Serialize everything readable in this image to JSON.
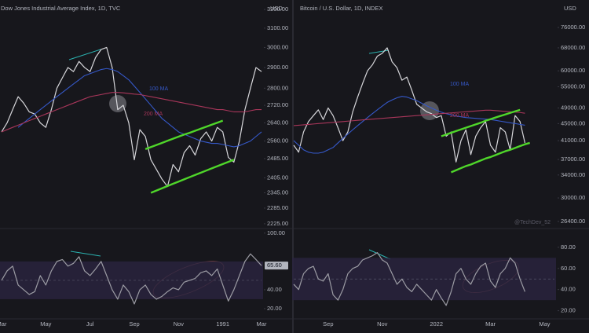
{
  "chart_data": [
    {
      "type": "line",
      "title": "Dow Jones Industrial Average Index, 1D, TVC",
      "unit": "USD",
      "log": true,
      "ylim": [
        2210,
        3230
      ],
      "yticks": [
        {
          "value": 3200,
          "label": "3200.00"
        },
        {
          "value": 3100,
          "label": "3100.00"
        },
        {
          "value": 3000,
          "label": "3000.00"
        },
        {
          "value": 2900,
          "label": "2900.00"
        },
        {
          "value": 2800,
          "label": "2800.00"
        },
        {
          "value": 2720,
          "label": "2720.00"
        },
        {
          "value": 2640,
          "label": "2640.00"
        },
        {
          "value": 2560,
          "label": "2560.00"
        },
        {
          "value": 2485,
          "label": "2485.00"
        },
        {
          "value": 2405,
          "label": "2405.00"
        },
        {
          "value": 2345,
          "label": "2345.00"
        },
        {
          "value": 2285,
          "label": "2285.00"
        },
        {
          "value": 2225,
          "label": "2225.00"
        }
      ],
      "series": [
        {
          "color": "#d6d6da",
          "values": [
            2600,
            2640,
            2700,
            2760,
            2730,
            2690,
            2680,
            2640,
            2620,
            2700,
            2800,
            2850,
            2900,
            2880,
            2930,
            2900,
            2880,
            2950,
            2990,
            3000,
            2900,
            2700,
            2720,
            2640,
            2480,
            2610,
            2580,
            2480,
            2440,
            2400,
            2370,
            2460,
            2430,
            2510,
            2540,
            2500,
            2570,
            2600,
            2560,
            2620,
            2600,
            2490,
            2470,
            2560,
            2700,
            2800,
            2900,
            2880
          ]
        },
        {
          "name": "100 MA",
          "color": "#3558c8",
          "values": [
            null,
            null,
            null,
            2620,
            2640,
            2660,
            2680,
            2700,
            2720,
            2740,
            2760,
            2780,
            2800,
            2820,
            2840,
            2860,
            2870,
            2880,
            2890,
            2895,
            2890,
            2880,
            2860,
            2840,
            2810,
            2780,
            2750,
            2720,
            2690,
            2660,
            2640,
            2620,
            2600,
            2590,
            2580,
            2570,
            2560,
            2555,
            2550,
            2550,
            2545,
            2540,
            2535,
            2540,
            2550,
            2560,
            2580,
            2600
          ]
        },
        {
          "name": "200 MA",
          "color": "#a8365a",
          "values": [
            2600,
            2610,
            2620,
            2630,
            2640,
            2650,
            2660,
            2670,
            2680,
            2690,
            2700,
            2710,
            2720,
            2730,
            2740,
            2750,
            2760,
            2765,
            2770,
            2775,
            2780,
            2780,
            2778,
            2775,
            2772,
            2770,
            2765,
            2760,
            2755,
            2750,
            2745,
            2740,
            2735,
            2730,
            2725,
            2720,
            2715,
            2710,
            2705,
            2700,
            2700,
            2695,
            2690,
            2690,
            2690,
            2695,
            2700,
            2700
          ]
        },
        {
          "color": "#4fd62a",
          "values": [
            null,
            null,
            null,
            null,
            null,
            null,
            null,
            null,
            null,
            null,
            null,
            null,
            null,
            null,
            null,
            null,
            null,
            null,
            null,
            null,
            null,
            null,
            null,
            null,
            null,
            null,
            2525,
            2534,
            2543,
            2552,
            2561,
            2570,
            2579,
            2588,
            2596,
            2605,
            2614,
            2623,
            2632,
            2641,
            2650,
            null,
            null,
            null,
            null,
            null,
            null,
            null
          ]
        },
        {
          "color": "#4fd62a",
          "values": [
            null,
            null,
            null,
            null,
            null,
            null,
            null,
            null,
            null,
            null,
            null,
            null,
            null,
            null,
            null,
            null,
            null,
            null,
            null,
            null,
            null,
            null,
            null,
            null,
            null,
            null,
            null,
            2345,
            2354,
            2363,
            2372,
            2381,
            2390,
            2399,
            2408,
            2417,
            2426,
            2435,
            2444,
            2453,
            2462,
            2471,
            2480,
            null,
            null,
            null,
            null,
            null
          ]
        }
      ]
    },
    {
      "type": "line",
      "ylim": [
        10,
        104
      ],
      "band": [
        30,
        70
      ],
      "midline": 50,
      "yticks": [
        {
          "value": 100,
          "label": "100.00"
        },
        {
          "value": 40,
          "label": "40.00"
        },
        {
          "value": 20,
          "label": "20.00"
        }
      ],
      "last_value_label": "65.60",
      "categories": [
        "Mar",
        null,
        null,
        null,
        null,
        null,
        null,
        null,
        "May",
        null,
        null,
        null,
        null,
        null,
        null,
        null,
        "Jul",
        null,
        null,
        null,
        null,
        null,
        null,
        null,
        "Sep",
        null,
        null,
        null,
        null,
        null,
        null,
        null,
        "Nov",
        null,
        null,
        null,
        null,
        null,
        null,
        null,
        "1991",
        null,
        null,
        null,
        null,
        null,
        null,
        "Mar"
      ],
      "series": [
        {
          "color": "#9c9ca4",
          "values": [
            50,
            60,
            65,
            45,
            40,
            35,
            38,
            55,
            45,
            60,
            70,
            72,
            65,
            68,
            75,
            60,
            55,
            62,
            70,
            55,
            40,
            30,
            45,
            38,
            25,
            40,
            45,
            35,
            30,
            33,
            38,
            42,
            40,
            48,
            50,
            52,
            58,
            60,
            55,
            62,
            45,
            28,
            40,
            55,
            70,
            78,
            72,
            65.6
          ]
        }
      ]
    },
    {
      "type": "line",
      "title": "Bitcoin / U.S. Dollar, 1D, INDEX",
      "unit": "USD",
      "log": true,
      "watermark": "@TechDev_52",
      "ylim": [
        25500,
        86400
      ],
      "yticks": [
        {
          "value": 76000,
          "label": "76000.00"
        },
        {
          "value": 68000,
          "label": "68000.00"
        },
        {
          "value": 60000,
          "label": "60000.00"
        },
        {
          "value": 55000,
          "label": "55000.00"
        },
        {
          "value": 49000,
          "label": "49000.00"
        },
        {
          "value": 45000,
          "label": "45000.00"
        },
        {
          "value": 41000,
          "label": "41000.00"
        },
        {
          "value": 37000,
          "label": "37000.00"
        },
        {
          "value": 34000,
          "label": "34000.00"
        },
        {
          "value": 30000,
          "label": "30000.00"
        },
        {
          "value": 26400,
          "label": "26400.00"
        }
      ],
      "series": [
        {
          "color": "#d6d6da",
          "values": [
            40000,
            38500,
            43000,
            45500,
            47000,
            48500,
            46000,
            49000,
            47000,
            44000,
            41000,
            43000,
            48000,
            52000,
            56000,
            60000,
            62000,
            65000,
            66000,
            68000,
            63000,
            61000,
            57000,
            58000,
            54000,
            50000,
            49000,
            48000,
            47500,
            46500,
            47000,
            42000,
            43000,
            36500,
            41000,
            43500,
            38000,
            42000,
            44000,
            45500,
            40000,
            38500,
            44000,
            43000,
            39000,
            47000,
            45500,
            40500,
            null,
            null,
            null,
            null,
            null,
            null
          ]
        },
        {
          "name": "100 MA",
          "color": "#3558c8",
          "values": [
            41000,
            40000,
            39000,
            38500,
            38300,
            38300,
            38500,
            39000,
            39500,
            40500,
            41500,
            42500,
            43500,
            44500,
            45500,
            46500,
            47500,
            48500,
            49500,
            50500,
            51200,
            51800,
            52200,
            52000,
            51500,
            51000,
            50300,
            49600,
            49000,
            48400,
            47900,
            47500,
            47200,
            46900,
            46700,
            46500,
            46400,
            46300,
            46200,
            46100,
            46000,
            45800,
            45600,
            45400,
            45200,
            45000,
            44800,
            44600,
            null,
            null,
            null,
            null,
            null,
            null
          ]
        },
        {
          "name": "200 MA",
          "color": "#a8365a",
          "values": [
            44500,
            44600,
            44700,
            44800,
            44900,
            45000,
            45100,
            45200,
            45300,
            45400,
            45500,
            45600,
            45700,
            45800,
            45900,
            46000,
            46100,
            46200,
            46300,
            46400,
            46500,
            46600,
            46700,
            46800,
            46900,
            47000,
            47100,
            47200,
            47300,
            47400,
            47500,
            47600,
            47700,
            47800,
            47900,
            48000,
            48100,
            48200,
            48300,
            48400,
            48400,
            48300,
            48200,
            48100,
            48000,
            47900,
            47800,
            47600,
            null,
            null,
            null,
            null,
            null,
            null
          ]
        },
        {
          "color": "#4fd62a",
          "values": [
            null,
            null,
            null,
            null,
            null,
            null,
            null,
            null,
            null,
            null,
            null,
            null,
            null,
            null,
            null,
            null,
            null,
            null,
            null,
            null,
            null,
            null,
            null,
            null,
            null,
            null,
            null,
            null,
            null,
            null,
            42000,
            42400,
            42800,
            43200,
            43600,
            44000,
            44400,
            44800,
            45200,
            45700,
            46100,
            46500,
            46900,
            47300,
            47700,
            48100,
            48500,
            null,
            null,
            null,
            null,
            null,
            null,
            null
          ]
        },
        {
          "color": "#4fd62a",
          "values": [
            null,
            null,
            null,
            null,
            null,
            null,
            null,
            null,
            null,
            null,
            null,
            null,
            null,
            null,
            null,
            null,
            null,
            null,
            null,
            null,
            null,
            null,
            null,
            null,
            null,
            null,
            null,
            null,
            null,
            null,
            null,
            null,
            34500,
            34900,
            35300,
            35700,
            36000,
            36400,
            36800,
            37200,
            37500,
            37900,
            38300,
            38700,
            39000,
            39400,
            39800,
            40200,
            40500,
            null,
            null,
            null,
            null,
            null
          ]
        }
      ]
    },
    {
      "type": "line",
      "ylim": [
        13,
        97
      ],
      "band": [
        30,
        70
      ],
      "midline": 50,
      "yticks": [
        {
          "value": 80,
          "label": "80.00"
        },
        {
          "value": 60,
          "label": "60.00"
        },
        {
          "value": 40,
          "label": "40.00"
        },
        {
          "value": 20,
          "label": "20.00"
        }
      ],
      "categories": [
        null,
        null,
        null,
        null,
        null,
        null,
        null,
        "Sep",
        null,
        null,
        null,
        null,
        null,
        null,
        null,
        null,
        null,
        null,
        "Nov",
        null,
        null,
        null,
        null,
        null,
        null,
        null,
        null,
        null,
        null,
        "2022",
        null,
        null,
        null,
        null,
        null,
        null,
        null,
        null,
        null,
        null,
        "Mar",
        null,
        null,
        null,
        null,
        null,
        null,
        null,
        null,
        null,
        null,
        "May",
        null,
        null
      ],
      "series": [
        {
          "color": "#9c9ca4",
          "values": [
            45,
            40,
            55,
            60,
            62,
            50,
            48,
            55,
            35,
            30,
            40,
            55,
            60,
            62,
            68,
            70,
            72,
            75,
            68,
            65,
            55,
            45,
            50,
            42,
            38,
            45,
            40,
            35,
            30,
            40,
            32,
            25,
            38,
            55,
            60,
            50,
            45,
            55,
            62,
            65,
            48,
            42,
            55,
            60,
            70,
            65,
            50,
            38,
            null,
            null,
            null,
            null,
            null,
            null
          ]
        }
      ]
    }
  ]
}
